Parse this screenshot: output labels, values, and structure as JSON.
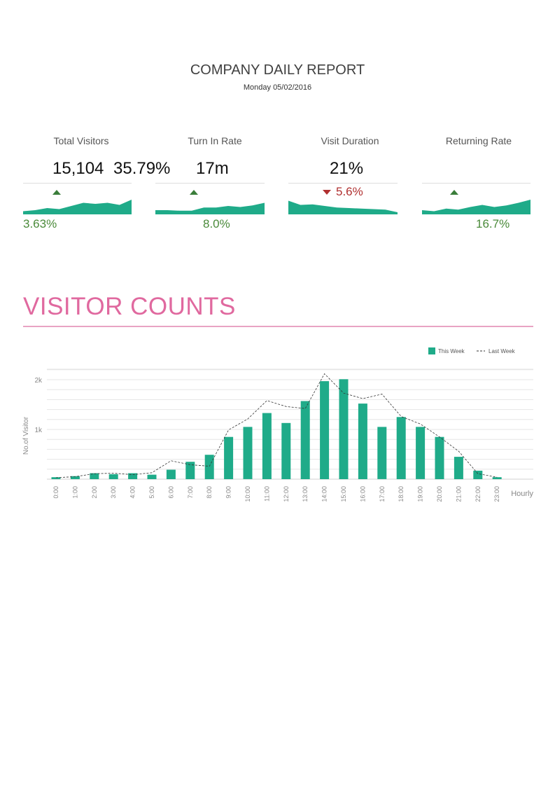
{
  "report": {
    "title": "COMPANY DAILY REPORT",
    "date": "Monday 05/02/2016"
  },
  "kpis": [
    {
      "label": "Total Visitors",
      "value": "15,104",
      "change": "3.63%",
      "direction": "up",
      "sparkline": [
        3,
        4,
        6,
        5,
        8,
        11,
        10,
        11,
        9,
        14
      ]
    },
    {
      "label": "Turn In Rate",
      "value": "35.79%",
      "change": "8.0%",
      "direction": "up",
      "sparkline": [
        4,
        4,
        3.5,
        3.5,
        6.5,
        6.5,
        8,
        7,
        8.5,
        11
      ]
    },
    {
      "label": "Visit Duration",
      "value": "17m",
      "change": "5.6%",
      "direction": "down",
      "sparkline": [
        13,
        9,
        9.5,
        8,
        6.5,
        6,
        5.5,
        5,
        4.5,
        2
      ]
    },
    {
      "label": "Returning Rate",
      "value": "21%",
      "change": "16.7%",
      "direction": "up",
      "sparkline": [
        4,
        3,
        5.5,
        4.5,
        7,
        9,
        7,
        8.5,
        11,
        14
      ]
    }
  ],
  "section": {
    "title": "VISITOR COUNTS"
  },
  "colors": {
    "accent_pink": "#e0699f",
    "bar_green": "#1fab89",
    "up_green": "#3a7d3a",
    "down_red": "#b03030"
  },
  "chart_data": {
    "type": "bar",
    "categories": [
      "0:00",
      "1:00",
      "2:00",
      "3:00",
      "4:00",
      "5:00",
      "6:00",
      "7:00",
      "8:00",
      "9:00",
      "10:00",
      "11:00",
      "12:00",
      "13:00",
      "14:00",
      "15:00",
      "16:00",
      "17:00",
      "18:00",
      "19:00",
      "20:00",
      "21:00",
      "22:00",
      "23:00"
    ],
    "series": [
      {
        "name": "This Week",
        "type": "bar",
        "values": [
          40,
          60,
          120,
          100,
          120,
          90,
          190,
          350,
          490,
          850,
          1050,
          1330,
          1130,
          1570,
          1970,
          2010,
          1520,
          1050,
          1250,
          1050,
          850,
          450,
          170,
          40
        ]
      },
      {
        "name": "Last Week",
        "type": "line",
        "values": [
          30,
          50,
          110,
          120,
          90,
          130,
          370,
          290,
          260,
          990,
          1210,
          1580,
          1460,
          1420,
          2120,
          1730,
          1620,
          1710,
          1260,
          1110,
          850,
          560,
          110,
          40
        ]
      }
    ],
    "ylabel": "No.of Visitor",
    "xlabel": "Hourly",
    "yticks": [
      {
        "value": 1000,
        "label": "1k"
      },
      {
        "value": 2000,
        "label": "2k"
      }
    ],
    "ylim": [
      0,
      2200
    ],
    "grid": true,
    "legend_position": "top-right"
  }
}
